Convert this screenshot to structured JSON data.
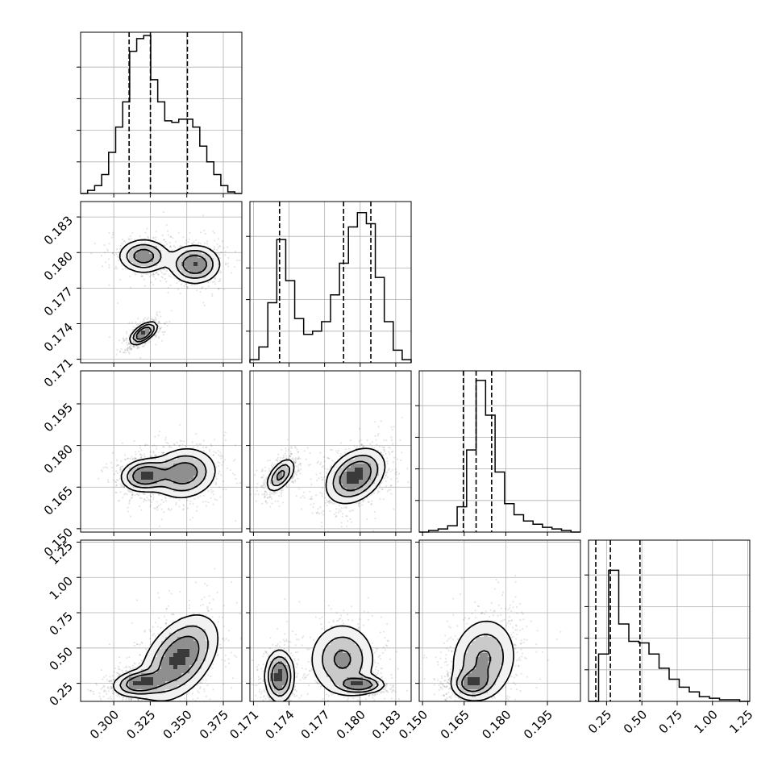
{
  "chart_data": {
    "type": "corner",
    "parameters": [
      {
        "ticks": [
          0.3,
          0.325,
          0.35,
          0.375
        ],
        "tick_labels": [
          "0.300",
          "0.325",
          "0.350",
          "0.375"
        ],
        "range": [
          0.2773,
          0.3877
        ],
        "quantiles": [
          0.3105,
          0.3251,
          0.3504
        ],
        "hist": [
          0.0,
          0.02,
          0.05,
          0.12,
          0.26,
          0.42,
          0.58,
          0.9,
          0.98,
          1.0,
          0.72,
          0.58,
          0.46,
          0.45,
          0.47,
          0.47,
          0.42,
          0.3,
          0.2,
          0.12,
          0.05,
          0.01,
          0.0
        ],
        "modes": [
          {
            "w": 0.55,
            "mu": 0.321,
            "sd": 0.009
          },
          {
            "w": 0.45,
            "mu": 0.346,
            "sd": 0.013
          }
        ]
      },
      {
        "ticks": [
          0.171,
          0.174,
          0.177,
          0.18,
          0.183
        ],
        "tick_labels": [
          "0.171",
          "0.174",
          "0.177",
          "0.180",
          "0.183"
        ],
        "range": [
          0.1707,
          0.1843
        ],
        "quantiles": [
          0.1732,
          0.1786,
          0.1809
        ],
        "hist": [
          0.02,
          0.1,
          0.38,
          0.78,
          0.52,
          0.28,
          0.18,
          0.2,
          0.26,
          0.43,
          0.63,
          0.86,
          0.95,
          0.88,
          0.54,
          0.26,
          0.08,
          0.02
        ],
        "modes": [
          {
            "w": 0.4,
            "mu": 0.1732,
            "sd": 0.0005
          },
          {
            "w": 0.6,
            "mu": 0.18,
            "sd": 0.0009
          }
        ]
      },
      {
        "ticks": [
          0.15,
          0.165,
          0.18,
          0.195
        ],
        "tick_labels": [
          "0.150",
          "0.165",
          "0.180",
          "0.195"
        ],
        "range": [
          0.1488,
          0.2069
        ],
        "quantiles": [
          0.1647,
          0.1693,
          0.1749
        ],
        "hist": [
          0.0,
          0.01,
          0.02,
          0.04,
          0.16,
          0.52,
          0.96,
          0.74,
          0.38,
          0.18,
          0.11,
          0.07,
          0.05,
          0.03,
          0.02,
          0.01,
          0.0
        ],
        "modes": [
          {
            "w": 1.0,
            "mu": 0.1695,
            "sd": 0.0035
          }
        ]
      },
      {
        "ticks": [
          0.25,
          0.5,
          0.75,
          1.0,
          1.25
        ],
        "tick_labels": [
          "0.25",
          "0.50",
          "0.75",
          "1.00",
          "1.25"
        ],
        "range": [
          0.1223,
          1.2638
        ],
        "quantiles": [
          0.1737,
          0.2771,
          0.4866
        ],
        "hist": [
          0.0,
          0.3,
          0.83,
          0.49,
          0.38,
          0.37,
          0.3,
          0.21,
          0.14,
          0.09,
          0.06,
          0.03,
          0.02,
          0.01,
          0.01,
          0.0
        ],
        "modes": [
          {
            "w": 0.6,
            "mu": 0.26,
            "sd": 0.06
          },
          {
            "w": 0.4,
            "mu": 0.45,
            "sd": 0.16
          }
        ]
      }
    ],
    "hist_yticks": [
      0.2,
      0.4,
      0.6,
      0.8
    ],
    "pairs": [
      {
        "row": 1,
        "col": 0,
        "blobs": [
          {
            "w": 0.4,
            "cx": 0.3205,
            "cy": 0.1732,
            "sx": 0.0045,
            "sy": 0.00045,
            "rho": 0.6
          },
          {
            "w": 0.28,
            "cx": 0.3205,
            "cy": 0.1797,
            "sx": 0.0085,
            "sy": 0.0007,
            "rho": 0.0
          },
          {
            "w": 0.32,
            "cx": 0.3555,
            "cy": 0.179,
            "sx": 0.0085,
            "sy": 0.0008,
            "rho": 0.0
          }
        ]
      },
      {
        "row": 2,
        "col": 0,
        "blobs": [
          {
            "w": 0.55,
            "cx": 0.3215,
            "cy": 0.1692,
            "sx": 0.008,
            "sy": 0.0028,
            "rho": 0.1
          },
          {
            "w": 0.45,
            "cx": 0.348,
            "cy": 0.17,
            "sx": 0.011,
            "sy": 0.0045,
            "rho": 0.1
          }
        ]
      },
      {
        "row": 2,
        "col": 1,
        "blobs": [
          {
            "w": 0.4,
            "cx": 0.1733,
            "cy": 0.1693,
            "sx": 0.0006,
            "sy": 0.003,
            "rho": 0.55
          },
          {
            "w": 0.6,
            "cx": 0.1796,
            "cy": 0.169,
            "sx": 0.0012,
            "sy": 0.0048,
            "rho": 0.35
          }
        ]
      },
      {
        "row": 3,
        "col": 0,
        "blobs": [
          {
            "w": 0.5,
            "cx": 0.318,
            "cy": 0.25,
            "sx": 0.009,
            "sy": 0.045,
            "rho": 0.2
          },
          {
            "w": 0.5,
            "cx": 0.345,
            "cy": 0.43,
            "sx": 0.013,
            "sy": 0.15,
            "rho": 0.45
          }
        ]
      },
      {
        "row": 3,
        "col": 1,
        "blobs": [
          {
            "w": 0.4,
            "cx": 0.1732,
            "cy": 0.3,
            "sx": 0.0006,
            "sy": 0.09,
            "rho": 0.0
          },
          {
            "w": 0.35,
            "cx": 0.18,
            "cy": 0.24,
            "sx": 0.001,
            "sy": 0.03,
            "rho": 0.0
          },
          {
            "w": 0.25,
            "cx": 0.1785,
            "cy": 0.42,
            "sx": 0.0014,
            "sy": 0.13,
            "rho": 0.0
          }
        ]
      },
      {
        "row": 3,
        "col": 2,
        "blobs": [
          {
            "w": 0.55,
            "cx": 0.168,
            "cy": 0.25,
            "sx": 0.0035,
            "sy": 0.05,
            "rho": 0.1
          },
          {
            "w": 0.45,
            "cx": 0.172,
            "cy": 0.42,
            "sx": 0.006,
            "sy": 0.15,
            "rho": 0.1
          }
        ]
      }
    ]
  }
}
